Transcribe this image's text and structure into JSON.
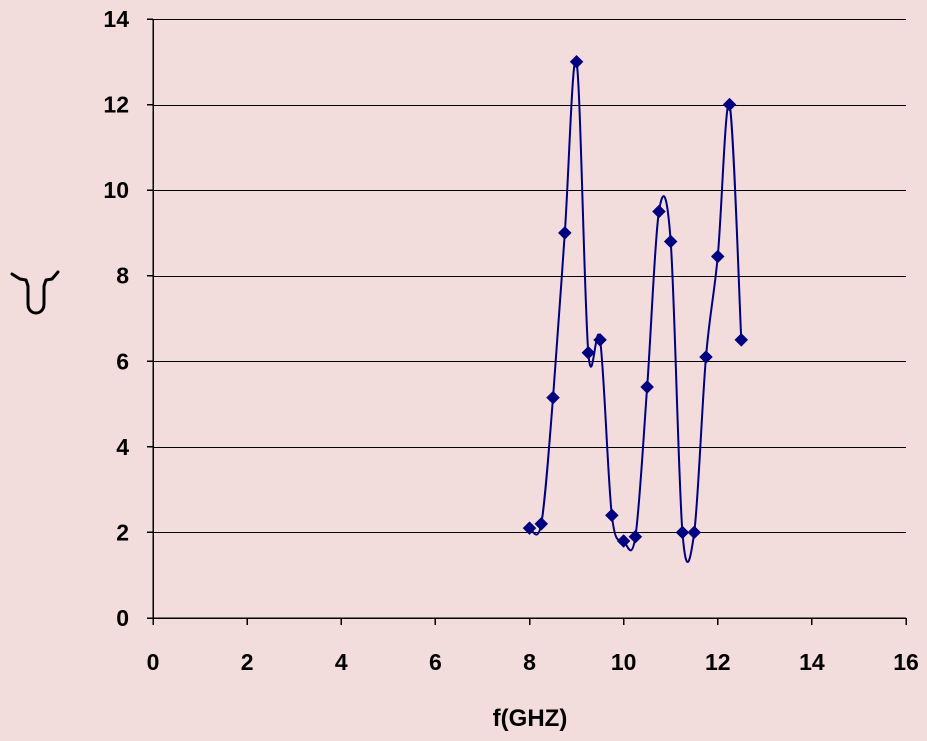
{
  "chart_data": {
    "type": "scatter",
    "title": "",
    "xlabel": "f(GHZ)",
    "ylabel": "",
    "xlim": [
      0,
      16
    ],
    "ylim": [
      0,
      14
    ],
    "x_ticks": [
      0,
      2,
      4,
      6,
      8,
      10,
      12,
      14,
      16
    ],
    "y_ticks": [
      0,
      2,
      4,
      6,
      8,
      10,
      12,
      14
    ],
    "grid": "horizontal",
    "legend": "none",
    "smoothed_line": true,
    "series": [
      {
        "marker": "diamond",
        "color": "#000080",
        "points": [
          {
            "x": 8.0,
            "y": 2.1
          },
          {
            "x": 8.25,
            "y": 2.2
          },
          {
            "x": 8.5,
            "y": 5.15
          },
          {
            "x": 8.75,
            "y": 9.0
          },
          {
            "x": 9.0,
            "y": 13.0
          },
          {
            "x": 9.25,
            "y": 6.2
          },
          {
            "x": 9.5,
            "y": 6.5
          },
          {
            "x": 9.75,
            "y": 2.4
          },
          {
            "x": 10.0,
            "y": 1.8
          },
          {
            "x": 10.25,
            "y": 1.9
          },
          {
            "x": 10.5,
            "y": 5.4
          },
          {
            "x": 10.75,
            "y": 9.5
          },
          {
            "x": 11.0,
            "y": 8.8
          },
          {
            "x": 11.25,
            "y": 2.0
          },
          {
            "x": 11.5,
            "y": 2.0
          },
          {
            "x": 11.75,
            "y": 6.1
          },
          {
            "x": 12.0,
            "y": 8.45
          },
          {
            "x": 12.25,
            "y": 12.0
          },
          {
            "x": 12.5,
            "y": 6.5
          }
        ]
      }
    ]
  },
  "colors": {
    "background": "#f2dcdc",
    "series": "#000080",
    "axes": "#000000"
  }
}
